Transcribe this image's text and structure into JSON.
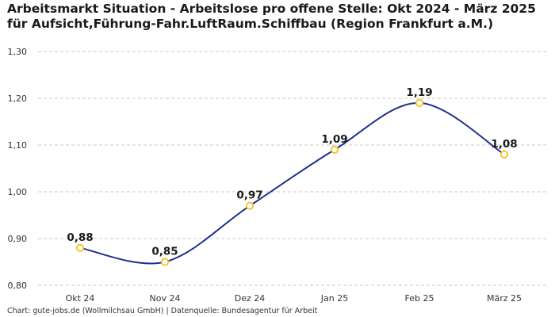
{
  "colors": {
    "line": "#1f2f8f",
    "marker_stroke": "#f2c21b",
    "marker_fill": "#ffffff",
    "grid": "#c8c8c8",
    "text": "#1a1a1a"
  },
  "chart_data": {
    "type": "line",
    "title": "Arbeitsmarkt Situation - Arbeitslose pro offene Stelle: Okt 2024 - März 2025 für Aufsicht,Führung-Fahr.LuftRaum.Schiffbau (Region Frankfurt a.M.)",
    "categories": [
      "Okt 24",
      "Nov 24",
      "Dez 24",
      "Jan 25",
      "Feb 25",
      "März 25"
    ],
    "series": [
      {
        "name": "Arbeitslose pro offene Stelle",
        "values": [
          0.88,
          0.85,
          0.97,
          1.09,
          1.19,
          1.08
        ],
        "labels": [
          "0,88",
          "0,85",
          "0,97",
          "1,09",
          "1,19",
          "1,08"
        ]
      }
    ],
    "y_ticks": [
      0.8,
      0.9,
      1.0,
      1.1,
      1.2,
      1.3
    ],
    "y_tick_labels": [
      "0,80",
      "0,90",
      "1,00",
      "1,10",
      "1,20",
      "1,30"
    ],
    "ylim": [
      0.8,
      1.3
    ],
    "xlabel": "",
    "ylabel": "",
    "grid": true,
    "smooth": true
  },
  "footer": {
    "source": "Chart: gute-jobs.de (Wollmilchsau GmbH) | Datenquelle: Bundesagentur für Arbeit"
  }
}
